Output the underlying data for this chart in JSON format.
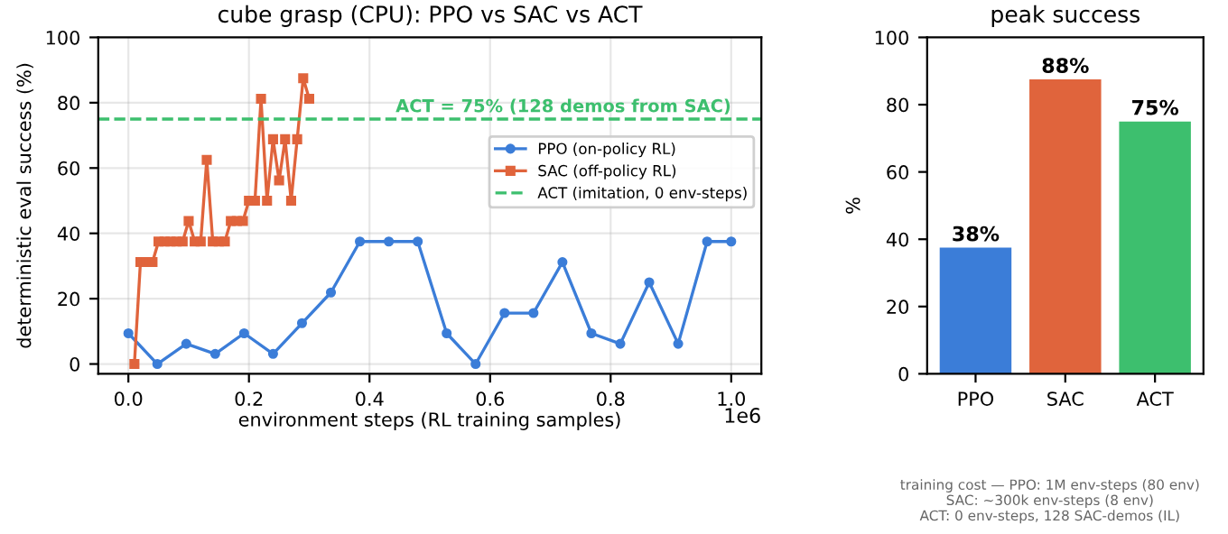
{
  "chart_data": [
    {
      "type": "line",
      "title": "cube grasp (CPU): PPO vs SAC vs ACT",
      "xlabel": "environment steps (RL training samples)",
      "ylabel": "deterministic eval success (%)",
      "xlim": [
        -0.05,
        1.05
      ],
      "xticks": [
        {
          "value": 0,
          "label": "0.0"
        },
        0.2,
        0.4,
        0.6,
        0.8,
        {
          "value": 1,
          "label": "1.0"
        }
      ],
      "ylim": [
        -3,
        100
      ],
      "yticks": [
        0,
        20,
        40,
        60,
        80,
        100
      ],
      "grid": true,
      "legend": "right",
      "series": [
        {
          "name": "PPO (on-policy RL)",
          "type": "line",
          "color": "#3b7dd8",
          "marker": "circle",
          "x": [
            0,
            0.048,
            0.096,
            0.144,
            0.192,
            0.24,
            0.288,
            0.336,
            0.384,
            0.432,
            0.48,
            0.528,
            0.576,
            0.624,
            0.672,
            0.72,
            0.768,
            0.816,
            0.864,
            0.912,
            0.96,
            1.0
          ],
          "values": [
            9.4,
            0,
            6.2,
            3.1,
            9.4,
            3.1,
            12.5,
            21.9,
            37.5,
            37.5,
            37.5,
            9.4,
            0,
            15.6,
            15.6,
            31.2,
            9.4,
            6.2,
            25,
            6.2,
            37.5,
            37.5
          ]
        },
        {
          "name": "SAC (off-policy RL)",
          "type": "line",
          "color": "#e0643c",
          "marker": "square",
          "x": [
            0.01,
            0.02,
            0.03,
            0.04,
            0.05,
            0.06,
            0.07,
            0.08,
            0.09,
            0.1,
            0.11,
            0.12,
            0.13,
            0.14,
            0.15,
            0.16,
            0.17,
            0.18,
            0.19,
            0.2,
            0.21,
            0.22,
            0.23,
            0.24,
            0.25,
            0.26,
            0.27,
            0.28,
            0.29,
            0.3
          ],
          "values": [
            0,
            31.2,
            31.2,
            31.2,
            37.5,
            37.5,
            37.5,
            37.5,
            37.5,
            43.8,
            37.5,
            37.5,
            62.5,
            37.5,
            37.5,
            37.5,
            43.8,
            43.8,
            43.8,
            50,
            50,
            81.2,
            50,
            68.8,
            56.2,
            68.8,
            50,
            68.8,
            87.5,
            81.2
          ]
        },
        {
          "name": "ACT (imitation, 0 env-steps)",
          "type": "line",
          "color": "#3dbf6e",
          "line_style": "dashed",
          "marker": "none",
          "x": [
            -0.05,
            1.05
          ],
          "values": [
            75,
            75
          ]
        }
      ],
      "annotations": [
        {
          "text": "ACT = 75% (128 demos from SAC)",
          "x": 1.0,
          "y": 75
        },
        "1e6"
      ]
    },
    {
      "type": "bar",
      "title": "peak success",
      "ylabel": "%",
      "categories": [
        "PPO",
        "SAC",
        "ACT"
      ],
      "values": [
        37.5,
        87.5,
        75
      ],
      "colors": [
        "#3b7dd8",
        "#e0643c",
        "#3dbf6e"
      ],
      "value_labels": [
        "38%",
        "88%",
        "75%"
      ],
      "ylim": [
        0,
        100
      ],
      "yticks": [
        0,
        20,
        40,
        60,
        80,
        100
      ],
      "annotations": [
        "training cost — PPO: 1M env-steps (80 env)\nSAC: ~300k env-steps (8 env)\nACT: 0 env-steps, 128 SAC-demos (IL)"
      ]
    }
  ]
}
